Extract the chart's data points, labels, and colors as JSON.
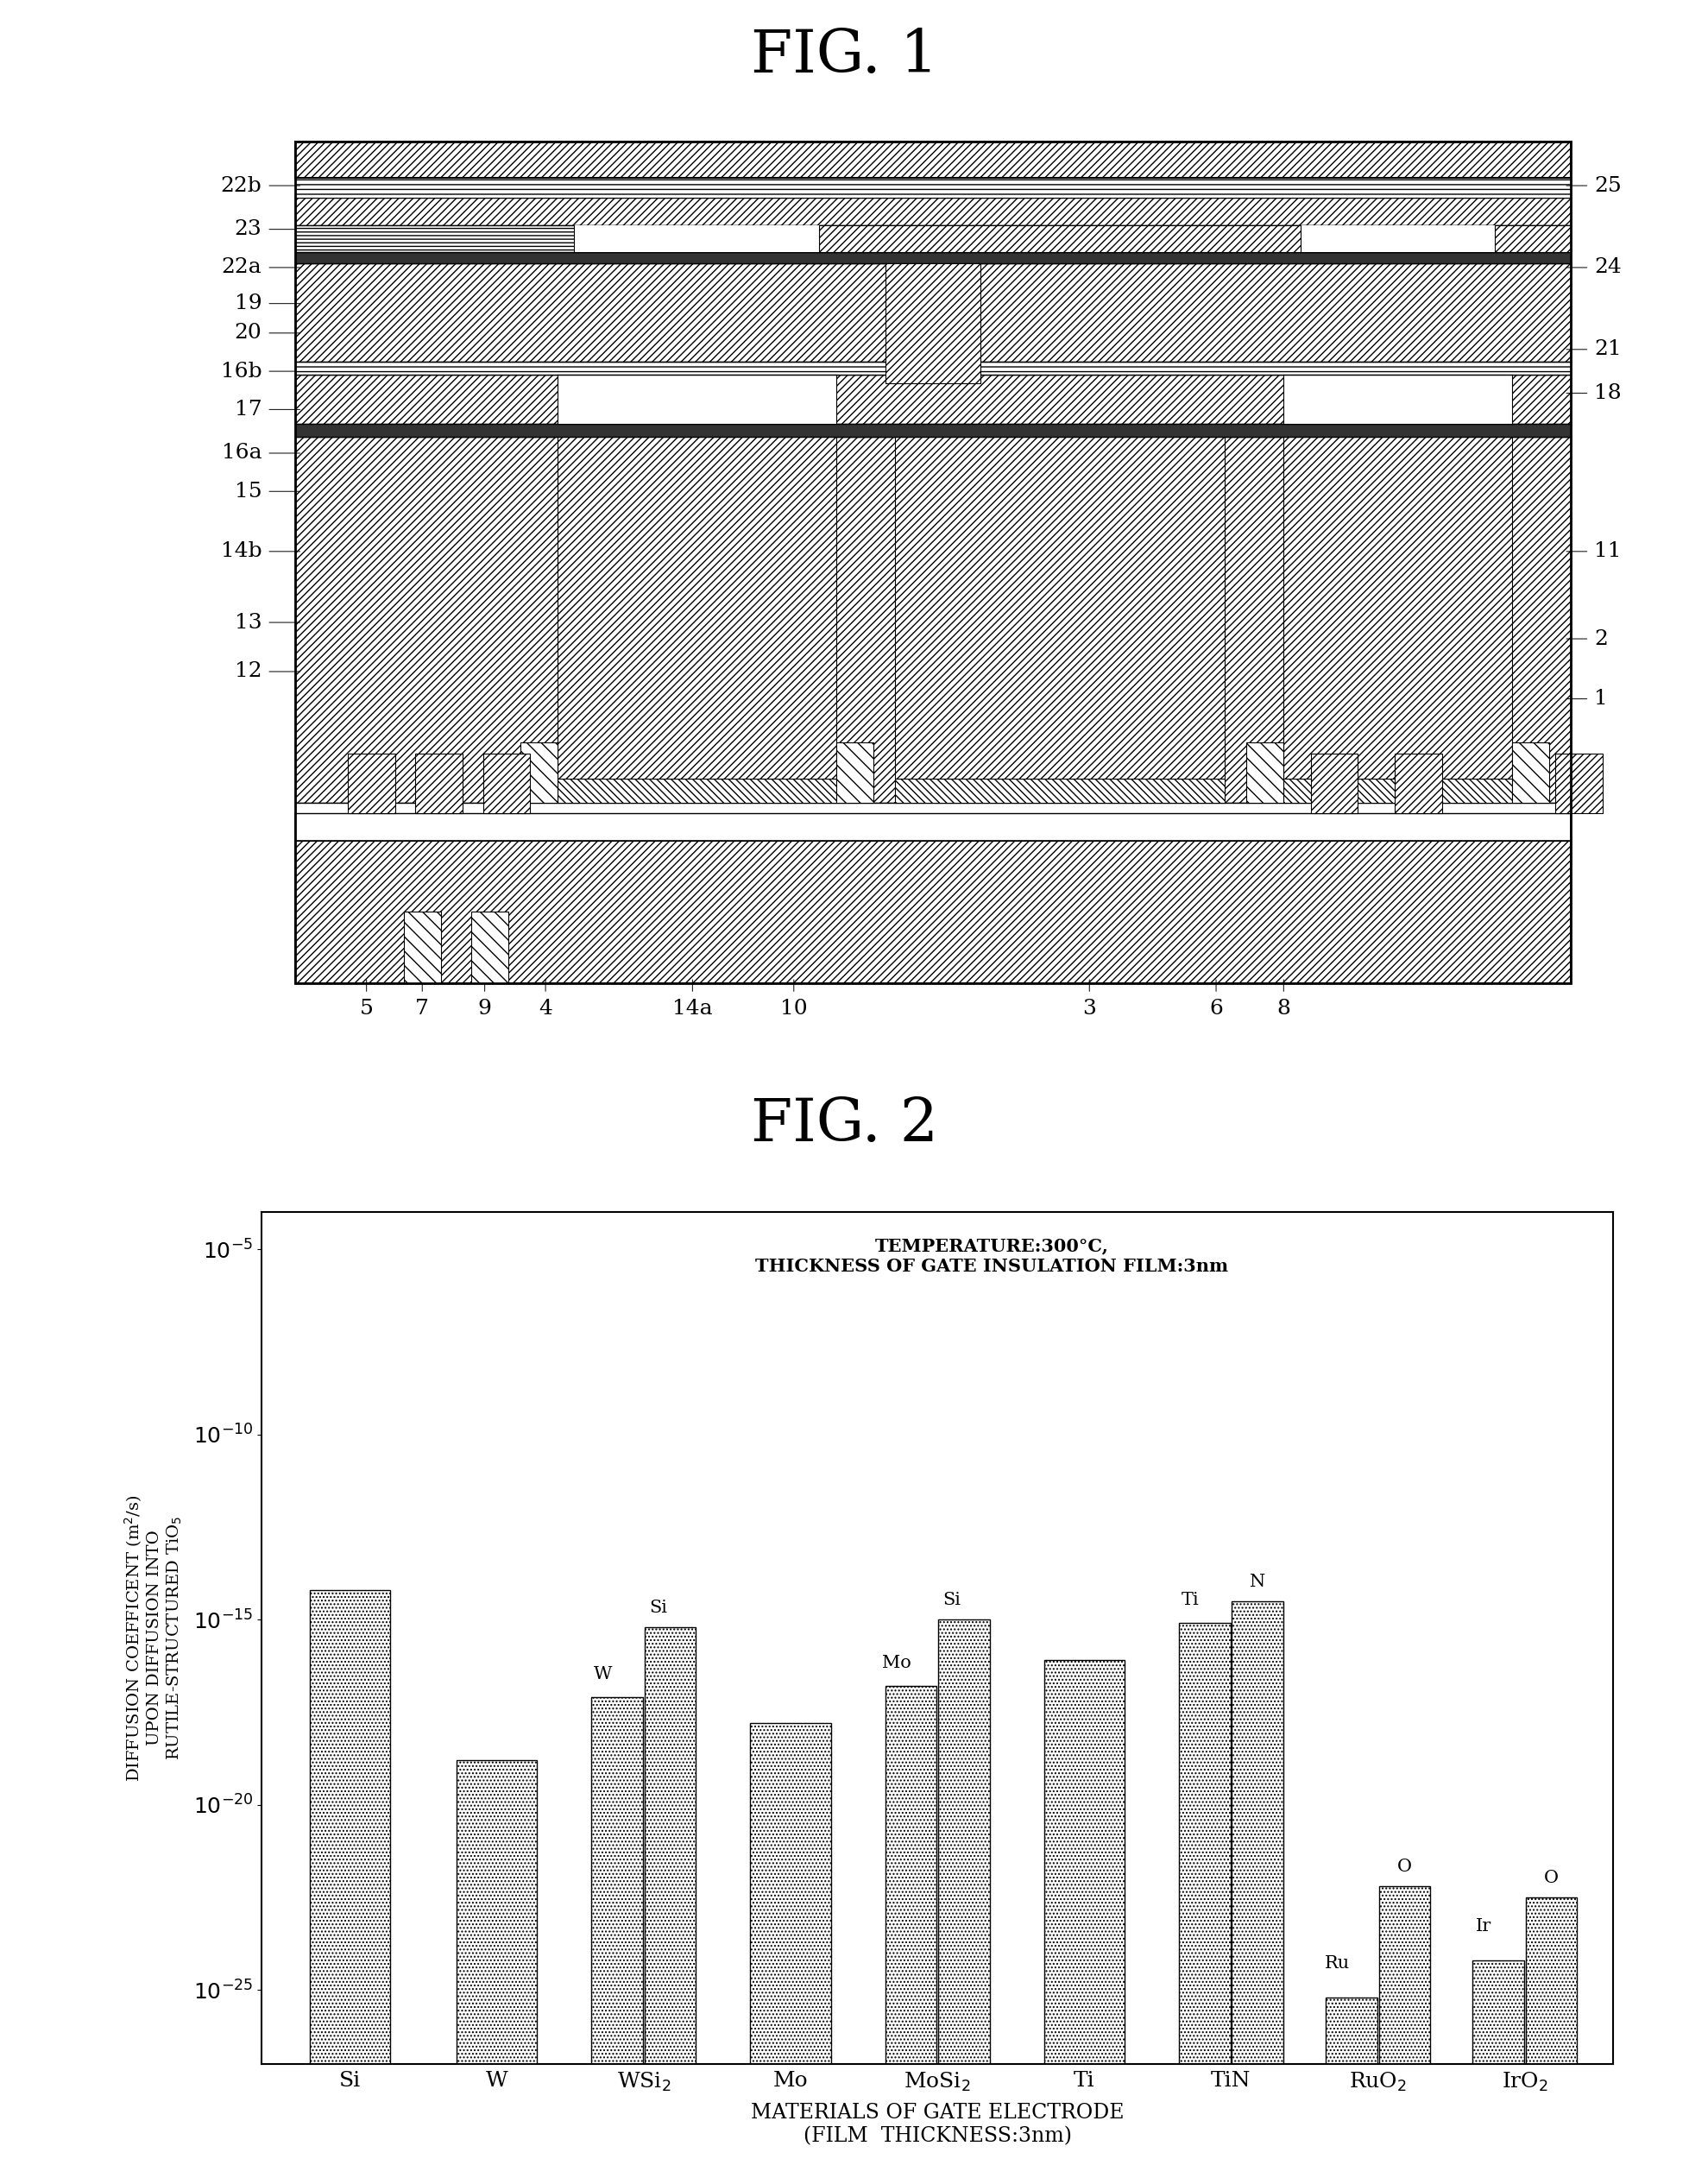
{
  "fig1_title": "FIG. 1",
  "fig2_title": "FIG. 2",
  "fig2_annotation_line1": "TEMPERATURE:300°C,",
  "fig2_annotation_line2": "THICKNESS OF GATE INSULATION FILM:3nm",
  "fig2_xlabel_line1": "MATERIALS OF GATE ELECTRODE",
  "fig2_xlabel_line2": "(FILM  THICKNESS:3nm)",
  "fig2_categories": [
    "Si",
    "W",
    "WSi2",
    "Mo",
    "MoSi2",
    "Ti",
    "TiN",
    "RuO2",
    "IrO2"
  ],
  "fig2_values_log10": [
    -14.2,
    -18.8,
    [
      -17.1,
      -15.2
    ],
    -17.8,
    [
      -16.8,
      -15.0
    ],
    [
      -16.1,
      -14.8
    ],
    -14.8,
    [
      -25.2,
      -22.2
    ],
    [
      -24.2,
      -22.5
    ]
  ],
  "fig2_ylim_log10": [
    -27,
    -4
  ],
  "fig2_yticks_log10": [
    -25,
    -20,
    -15,
    -10,
    -5
  ],
  "fig2_bar_width": 0.4,
  "background_color": "white"
}
